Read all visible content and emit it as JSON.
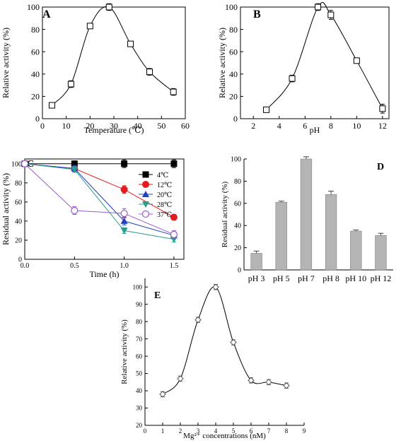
{
  "chart_data": [
    {
      "panel": "A",
      "type": "line",
      "xlabel": "Temperature (℃)",
      "ylabel": "Relative activity (%)",
      "xlim": [
        0,
        60
      ],
      "ylim": [
        0,
        100
      ],
      "xticks": [
        "0",
        "10",
        "20",
        "30",
        "40",
        "50",
        "60"
      ],
      "yticks": [
        "0",
        "20",
        "40",
        "60",
        "80",
        "100"
      ],
      "series": [
        {
          "x": [
            4,
            12,
            20,
            28,
            37,
            45,
            55
          ],
          "y": [
            12,
            31,
            83,
            100,
            67,
            42,
            24
          ],
          "err": [
            2,
            3,
            2,
            3,
            2,
            3,
            3
          ],
          "marker": "open-square",
          "color": "#000000"
        }
      ]
    },
    {
      "panel": "B",
      "type": "line",
      "xlabel": "pH",
      "ylabel": "Relative activity (%)",
      "xlim": [
        1,
        12.5
      ],
      "ylim": [
        0,
        100
      ],
      "xticks": [
        "2",
        "4",
        "6",
        "8",
        "10",
        "12"
      ],
      "yticks": [
        "0",
        "20",
        "40",
        "60",
        "80",
        "100"
      ],
      "series": [
        {
          "x": [
            3,
            5,
            7,
            8,
            10,
            12
          ],
          "y": [
            8,
            36,
            100,
            93,
            52,
            9
          ],
          "err": [
            2,
            3,
            3,
            4,
            2,
            4
          ],
          "marker": "open-square",
          "color": "#000000"
        }
      ]
    },
    {
      "panel": "C",
      "type": "line",
      "xlabel": "Time (h)",
      "ylabel": "Residual activity  (%)",
      "xlim": [
        0,
        1.6
      ],
      "ylim": [
        0,
        105
      ],
      "xticks": [
        "0.0",
        "0.5",
        "1.0",
        "1.5"
      ],
      "yticks": [
        "0",
        "20",
        "40",
        "60",
        "80",
        "100"
      ],
      "legend_position": "right",
      "x": [
        0,
        0.5,
        1.0,
        1.5
      ],
      "series": [
        {
          "name": "4℃",
          "y": [
            100,
            100,
            100,
            100
          ],
          "err": [
            0,
            3,
            4,
            4
          ],
          "marker": "filled-square",
          "color": "#000000"
        },
        {
          "name": "12℃",
          "y": [
            100,
            95,
            73,
            44
          ],
          "err": [
            0,
            3,
            4,
            3
          ],
          "marker": "filled-circle",
          "color": "#e41a1c"
        },
        {
          "name": "20℃",
          "y": [
            100,
            95,
            40,
            25
          ],
          "err": [
            0,
            3,
            4,
            3
          ],
          "marker": "filled-triangle",
          "color": "#1f3fbf"
        },
        {
          "name": "28℃",
          "y": [
            100,
            94,
            30,
            21
          ],
          "err": [
            0,
            3,
            3,
            3
          ],
          "marker": "filled-triangle-down",
          "color": "#2a9d8f"
        },
        {
          "name": "37℃",
          "y": [
            100,
            51,
            48,
            26
          ],
          "err": [
            0,
            4,
            5,
            4
          ],
          "marker": "open-circle",
          "color": "#9b59d0"
        }
      ]
    },
    {
      "panel": "D",
      "type": "bar",
      "ylabel": "Residual activity (%)",
      "ylim": [
        0,
        100
      ],
      "yticks": [
        "0",
        "20",
        "40",
        "60",
        "80",
        "100"
      ],
      "categories": [
        "pH 3",
        "pH 5",
        "pH 7",
        "pH 8",
        "pH 10",
        "pH 12"
      ],
      "values": [
        15,
        61,
        100,
        68,
        35,
        31
      ],
      "err": [
        2,
        1,
        2,
        3,
        1,
        2
      ],
      "color": "#b4b4b4"
    },
    {
      "panel": "E",
      "type": "line",
      "xlabel": "Mg²⁺ concentrations (nM)",
      "ylabel": "Relative activity (%)",
      "xlim": [
        0,
        9
      ],
      "ylim": [
        20,
        105
      ],
      "xticks": [
        "0",
        "1",
        "2",
        "3",
        "4",
        "5",
        "6",
        "7",
        "8",
        "9"
      ],
      "yticks": [
        "20",
        "30",
        "40",
        "50",
        "60",
        "70",
        "80",
        "90",
        "100"
      ],
      "series": [
        {
          "x": [
            1,
            2,
            3,
            4,
            5,
            6,
            7,
            8
          ],
          "y": [
            38,
            47,
            81,
            100,
            68,
            46,
            45,
            43
          ],
          "err": [
            1.5,
            1.5,
            1.5,
            1.5,
            1.5,
            1.5,
            1.5,
            1.5
          ],
          "marker": "open-diamond",
          "color": "#555555"
        }
      ]
    }
  ]
}
